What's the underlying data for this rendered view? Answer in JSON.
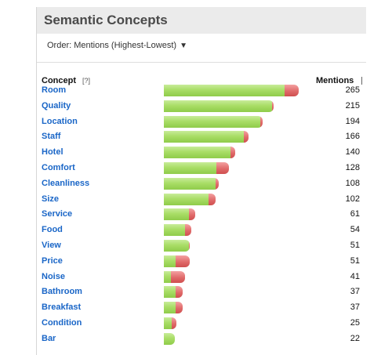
{
  "panel": {
    "title": "Semantic Concepts",
    "order_label": "Order: Mentions (Highest-Lowest)",
    "order_arrow": "▼"
  },
  "columns": {
    "concept": "Concept",
    "help": "[?]",
    "mentions": "Mentions"
  },
  "colors": {
    "positive": "#9fd65c",
    "negative": "#e06a6a",
    "link": "#1a66c7"
  },
  "rows": [
    {
      "concept": "Room",
      "mentions": "265",
      "total": 265,
      "negative": 27
    },
    {
      "concept": "Quality",
      "mentions": "215",
      "total": 215,
      "negative": 3
    },
    {
      "concept": "Location",
      "mentions": "194",
      "total": 194,
      "negative": 5
    },
    {
      "concept": "Staff",
      "mentions": "166",
      "total": 166,
      "negative": 9
    },
    {
      "concept": "Hotel",
      "mentions": "140",
      "total": 140,
      "negative": 9
    },
    {
      "concept": "Comfort",
      "mentions": "128",
      "total": 128,
      "negative": 25
    },
    {
      "concept": "Cleanliness",
      "mentions": "108",
      "total": 108,
      "negative": 6
    },
    {
      "concept": "Size",
      "mentions": "102",
      "total": 102,
      "negative": 14
    },
    {
      "concept": "Service",
      "mentions": "61",
      "total": 61,
      "negative": 11
    },
    {
      "concept": "Food",
      "mentions": "54",
      "total": 54,
      "negative": 13
    },
    {
      "concept": "View",
      "mentions": "51",
      "total": 51,
      "negative": 2
    },
    {
      "concept": "Price",
      "mentions": "51",
      "total": 51,
      "negative": 28
    },
    {
      "concept": "Noise",
      "mentions": "41",
      "total": 41,
      "negative": 27
    },
    {
      "concept": "Bathroom",
      "mentions": "37",
      "total": 37,
      "negative": 14
    },
    {
      "concept": "Breakfast",
      "mentions": "37",
      "total": 37,
      "negative": 14
    },
    {
      "concept": "Condition",
      "mentions": "25",
      "total": 25,
      "negative": 10
    },
    {
      "concept": "Bar",
      "mentions": "22",
      "total": 22,
      "negative": 0
    }
  ]
}
